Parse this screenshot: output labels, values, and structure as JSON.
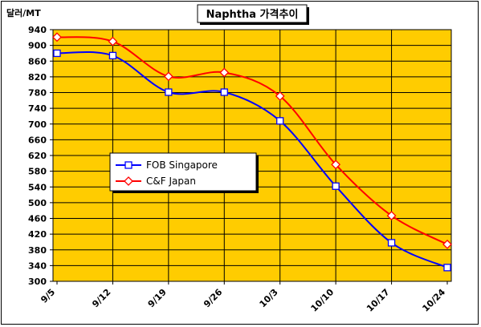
{
  "chart_data": {
    "type": "line",
    "title": "Naphtha 가격추이",
    "ylabel": "달러/MT",
    "ylim": [
      300,
      940
    ],
    "ystep": 40,
    "categories": [
      "9/5",
      "9/12",
      "9/19",
      "9/26",
      "10/3",
      "10/10",
      "10/17",
      "10/24"
    ],
    "series": [
      {
        "name": "FOB Singapore",
        "color": "#0000ff",
        "marker": "square",
        "values": [
          880,
          874,
          781,
          781,
          708,
          542,
          398,
          335
        ]
      },
      {
        "name": "C&F Japan",
        "color": "#ff0000",
        "marker": "diamond",
        "values": [
          921,
          910,
          821,
          831,
          771,
          597,
          467,
          394
        ]
      }
    ],
    "grid": true,
    "legend_position": "center-left",
    "plot_background": "#ffcc00"
  }
}
